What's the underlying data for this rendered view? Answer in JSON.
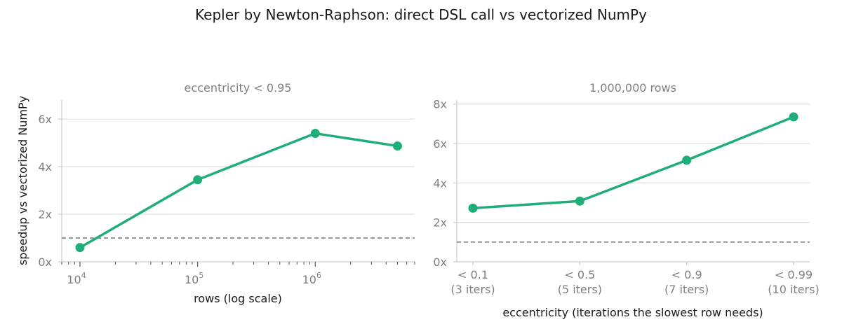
{
  "figure": {
    "title": "Kepler by Newton-Raphson: direct DSL call vs vectorized NumPy",
    "line_color": "#1fad78",
    "reference_color": "#808080"
  },
  "chart_data": [
    {
      "type": "line",
      "subtitle": "eccentricity < 0.95",
      "xlabel": "rows (log scale)",
      "ylabel": "speedup vs vectorized NumPy",
      "x_scale": "log",
      "xlim": [
        7000,
        7000000
      ],
      "ylim": [
        0,
        6.8
      ],
      "x_ticks": [
        {
          "base": "10",
          "exp": "4",
          "value": 10000
        },
        {
          "base": "10",
          "exp": "5",
          "value": 100000
        },
        {
          "base": "10",
          "exp": "6",
          "value": 1000000
        }
      ],
      "y_ticks": [
        {
          "label": "0x",
          "value": 0
        },
        {
          "label": "2x",
          "value": 2
        },
        {
          "label": "4x",
          "value": 4
        },
        {
          "label": "6x",
          "value": 6
        }
      ],
      "reference_line": 1,
      "grid": "horizontal",
      "series": [
        {
          "x": [
            10000,
            100000,
            1000000,
            5000000
          ],
          "y": [
            0.6,
            3.45,
            5.4,
            4.87
          ]
        }
      ]
    },
    {
      "type": "line",
      "subtitle": "1,000,000 rows",
      "xlabel": "eccentricity (iterations the slowest row needs)",
      "ylabel": "",
      "categories": [
        [
          "< 0.1",
          "(3 iters)"
        ],
        [
          "< 0.5",
          "(5 iters)"
        ],
        [
          "< 0.9",
          "(7 iters)"
        ],
        [
          "< 0.99",
          "(10 iters)"
        ]
      ],
      "ylim": [
        0,
        8.2
      ],
      "y_ticks": [
        {
          "label": "0x",
          "value": 0
        },
        {
          "label": "2x",
          "value": 2
        },
        {
          "label": "4x",
          "value": 4
        },
        {
          "label": "6x",
          "value": 6
        },
        {
          "label": "8x",
          "value": 8
        }
      ],
      "reference_line": 1,
      "grid": "horizontal",
      "series": [
        {
          "values": [
            2.72,
            3.08,
            5.15,
            7.35
          ]
        }
      ]
    }
  ]
}
